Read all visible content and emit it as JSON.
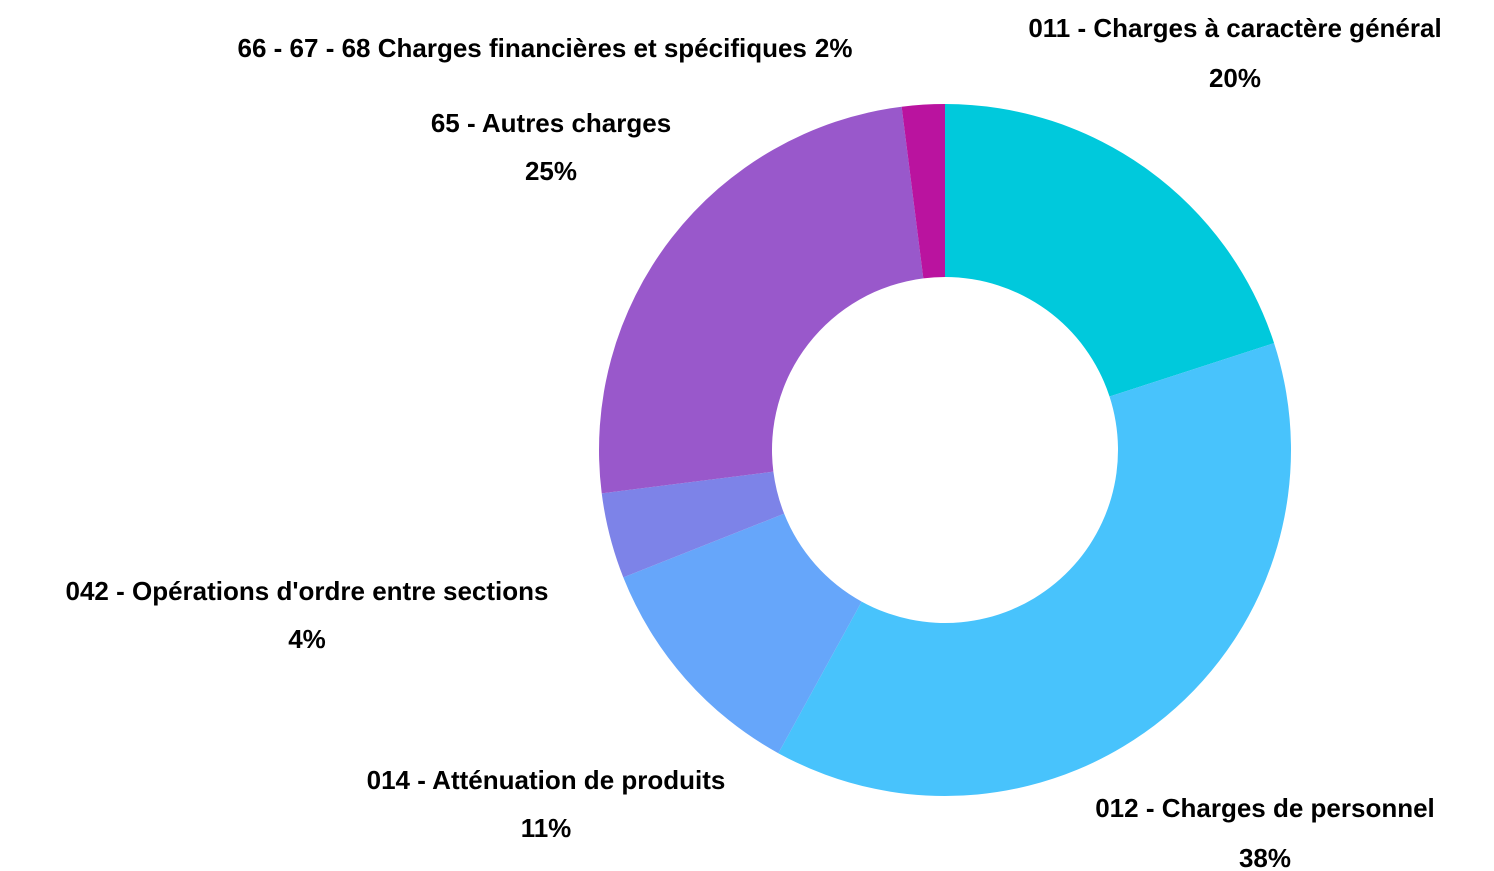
{
  "chart_data": {
    "type": "donut",
    "categories": [
      "011 - Charges à caractère général",
      "012 - Charges de personnel",
      "014 - Atténuation de produits",
      "042 - Opérations d'ordre entre sections",
      "65 - Autres charges",
      "66 - 67 - 68 Charges financières et spécifiques"
    ],
    "values": [
      20,
      38,
      11,
      4,
      25,
      2
    ],
    "value_labels": [
      "20%",
      "38%",
      "11%",
      "4%",
      "25%",
      "2%"
    ],
    "colors": [
      "#00c9dc",
      "#48c3fc",
      "#66a6fa",
      "#7d83e8",
      "#9958cb",
      "#ba139f"
    ]
  }
}
